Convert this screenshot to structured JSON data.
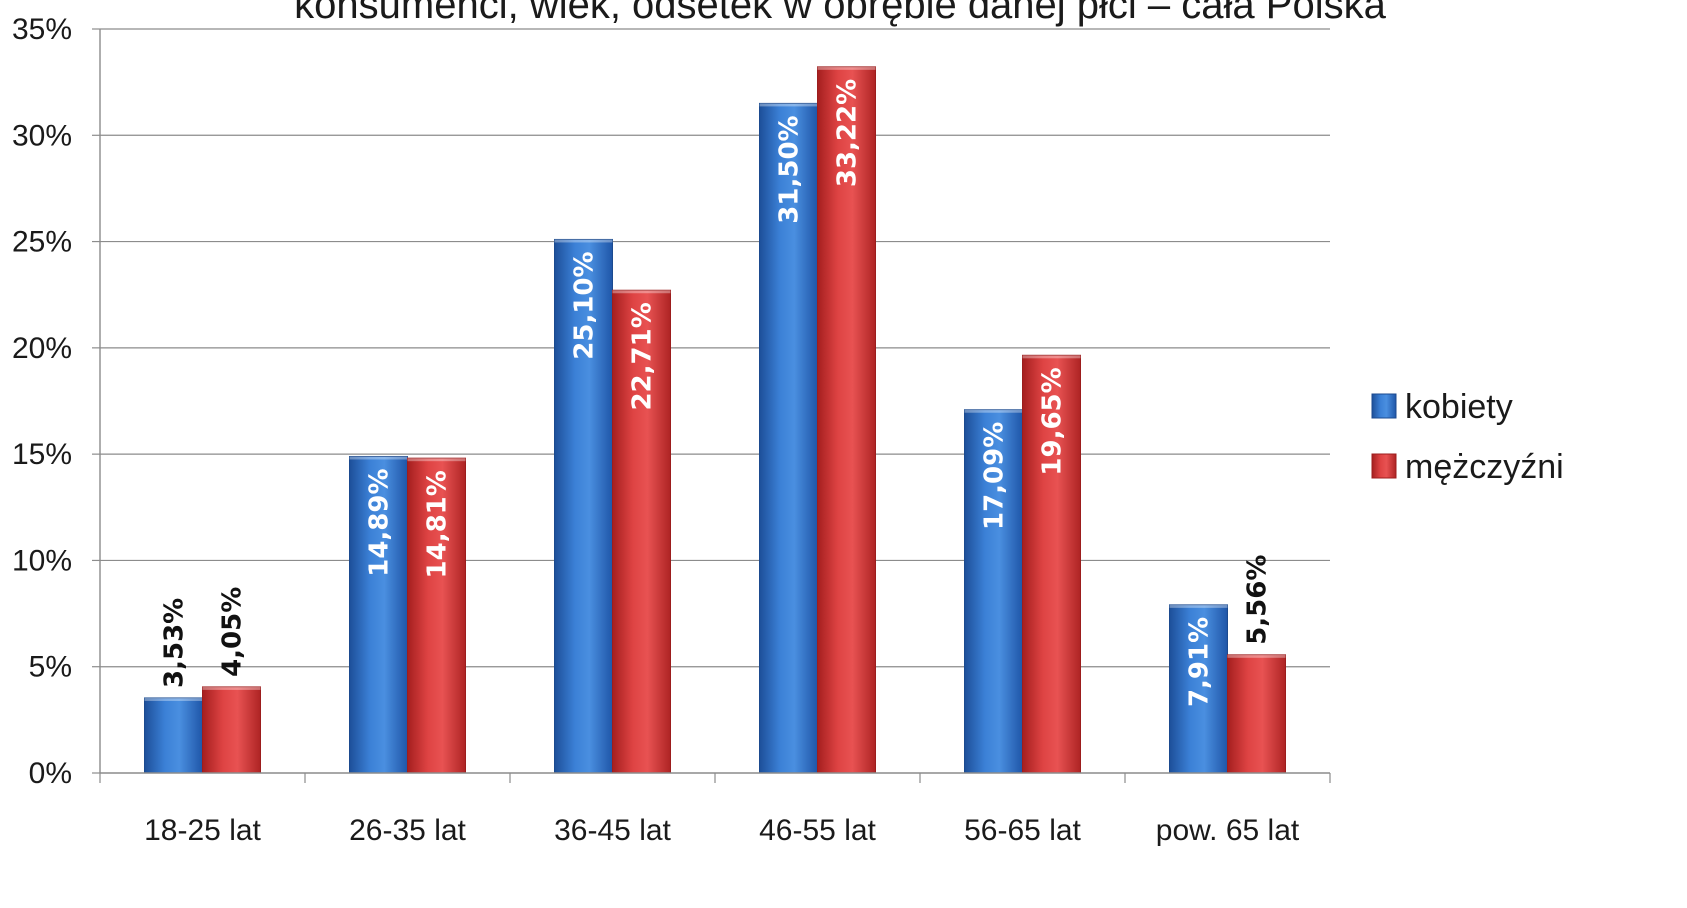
{
  "chart_data": {
    "type": "bar",
    "title": "konsumenci, wiek, odsetek w obrębie danej płci – cała Polska",
    "categories": [
      "18-25 lat",
      "26-35 lat",
      "36-45 lat",
      "46-55 lat",
      "56-65 lat",
      "pow. 65 lat"
    ],
    "series": [
      {
        "name": "kobiety",
        "color": "#2f6fc4",
        "values": [
          3.53,
          14.89,
          25.1,
          31.5,
          17.09,
          7.91
        ],
        "labels": [
          "3,53%",
          "14,89%",
          "25,10%",
          "31,50%",
          "17,09%",
          "7,91%"
        ]
      },
      {
        "name": "mężczyźni",
        "color": "#d43535",
        "values": [
          4.05,
          14.81,
          22.71,
          33.22,
          19.65,
          5.56
        ],
        "labels": [
          "4,05%",
          "14,81%",
          "22,71%",
          "33,22%",
          "19,65%",
          "5,56%"
        ]
      }
    ],
    "yticks": [
      "0%",
      "5%",
      "10%",
      "15%",
      "20%",
      "25%",
      "30%",
      "35%"
    ],
    "ylim": [
      0,
      35
    ],
    "ystep": 5,
    "grid": true,
    "legend": "right"
  }
}
